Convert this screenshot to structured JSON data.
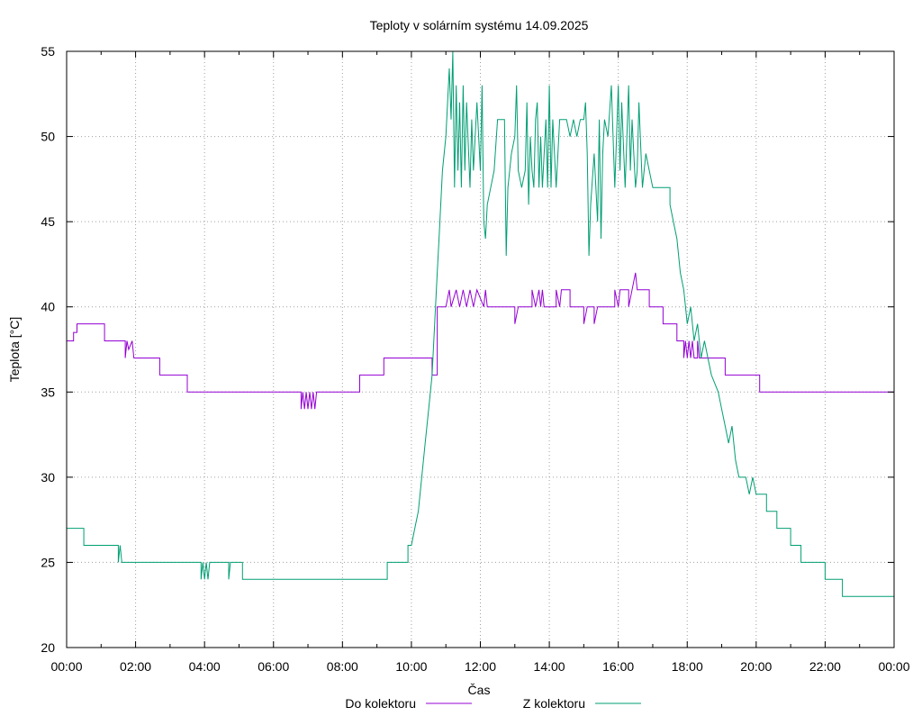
{
  "chart_data": {
    "type": "line",
    "title": "Teploty v solárním systému 14.09.2025",
    "xlabel": "Čas",
    "ylabel": "Teplota [°C]",
    "xlim": [
      0,
      24
    ],
    "ylim": [
      20,
      55
    ],
    "grid": true,
    "legend_position": "bottom",
    "x_ticks": [
      "00:00",
      "02:00",
      "04:00",
      "06:00",
      "08:00",
      "10:00",
      "12:00",
      "14:00",
      "16:00",
      "18:00",
      "20:00",
      "22:00",
      "00:00"
    ],
    "y_ticks": [
      "20",
      "25",
      "30",
      "35",
      "40",
      "45",
      "50",
      "55"
    ],
    "series": [
      {
        "name": "Do kolektoru",
        "color": "#9400d3",
        "points": [
          [
            0,
            38
          ],
          [
            0.2,
            38
          ],
          [
            0.2,
            38.5
          ],
          [
            0.3,
            38.5
          ],
          [
            0.3,
            39
          ],
          [
            1.1,
            39
          ],
          [
            1.1,
            38
          ],
          [
            1.7,
            38
          ],
          [
            1.7,
            37
          ],
          [
            1.75,
            38
          ],
          [
            1.8,
            37.5
          ],
          [
            1.9,
            38
          ],
          [
            1.95,
            37
          ],
          [
            2.05,
            37
          ],
          [
            2.7,
            37
          ],
          [
            2.7,
            36
          ],
          [
            3.5,
            36
          ],
          [
            3.5,
            35
          ],
          [
            6.8,
            35
          ],
          [
            6.8,
            34
          ],
          [
            6.85,
            35
          ],
          [
            6.9,
            34
          ],
          [
            6.95,
            35
          ],
          [
            7.0,
            34
          ],
          [
            7.05,
            35
          ],
          [
            7.1,
            34
          ],
          [
            7.15,
            35
          ],
          [
            7.2,
            34
          ],
          [
            7.25,
            35
          ],
          [
            8.5,
            35
          ],
          [
            8.5,
            36
          ],
          [
            9.2,
            36
          ],
          [
            9.2,
            37
          ],
          [
            10.6,
            37
          ],
          [
            10.6,
            36
          ],
          [
            10.75,
            36
          ],
          [
            10.75,
            40
          ],
          [
            11.0,
            40
          ],
          [
            11.1,
            41
          ],
          [
            11.15,
            40
          ],
          [
            11.3,
            41
          ],
          [
            11.4,
            40
          ],
          [
            11.5,
            41
          ],
          [
            11.6,
            40
          ],
          [
            11.7,
            41
          ],
          [
            11.8,
            40
          ],
          [
            11.9,
            41
          ],
          [
            12.1,
            40
          ],
          [
            12.15,
            41
          ],
          [
            12.2,
            40
          ],
          [
            13.0,
            40
          ],
          [
            13.0,
            39
          ],
          [
            13.1,
            40
          ],
          [
            13.5,
            40
          ],
          [
            13.5,
            41
          ],
          [
            13.6,
            40
          ],
          [
            13.7,
            41
          ],
          [
            13.75,
            40
          ],
          [
            13.8,
            41
          ],
          [
            13.85,
            40
          ],
          [
            14.2,
            40
          ],
          [
            14.2,
            41
          ],
          [
            14.3,
            40
          ],
          [
            14.35,
            41
          ],
          [
            14.6,
            41
          ],
          [
            14.6,
            40
          ],
          [
            15.0,
            40
          ],
          [
            15.0,
            39
          ],
          [
            15.1,
            40
          ],
          [
            15.3,
            40
          ],
          [
            15.3,
            39
          ],
          [
            15.4,
            40
          ],
          [
            15.9,
            40
          ],
          [
            15.9,
            41
          ],
          [
            16.0,
            40
          ],
          [
            16.05,
            41
          ],
          [
            16.3,
            41
          ],
          [
            16.3,
            40
          ],
          [
            16.4,
            41
          ],
          [
            16.5,
            42
          ],
          [
            16.55,
            41
          ],
          [
            16.9,
            41
          ],
          [
            16.9,
            40
          ],
          [
            17.3,
            40
          ],
          [
            17.3,
            39
          ],
          [
            17.7,
            39
          ],
          [
            17.7,
            38
          ],
          [
            17.9,
            38
          ],
          [
            17.9,
            37
          ],
          [
            17.95,
            38
          ],
          [
            18.0,
            37
          ],
          [
            18.05,
            38
          ],
          [
            18.1,
            37
          ],
          [
            18.15,
            38
          ],
          [
            18.2,
            37
          ],
          [
            18.3,
            37
          ],
          [
            18.3,
            38
          ],
          [
            18.35,
            37
          ],
          [
            19.1,
            37
          ],
          [
            19.1,
            36
          ],
          [
            20.1,
            36
          ],
          [
            20.1,
            35
          ],
          [
            24,
            35
          ]
        ]
      },
      {
        "name": "Z kolektoru",
        "color": "#009e73",
        "points": [
          [
            0,
            27
          ],
          [
            0.5,
            27
          ],
          [
            0.5,
            26
          ],
          [
            1.5,
            26
          ],
          [
            1.5,
            25
          ],
          [
            1.55,
            26
          ],
          [
            1.6,
            25
          ],
          [
            3.9,
            25
          ],
          [
            3.9,
            24
          ],
          [
            3.95,
            25
          ],
          [
            4.0,
            24
          ],
          [
            4.05,
            25
          ],
          [
            4.1,
            24
          ],
          [
            4.15,
            25
          ],
          [
            4.7,
            25
          ],
          [
            4.7,
            24
          ],
          [
            4.75,
            25
          ],
          [
            5.1,
            25
          ],
          [
            5.1,
            24
          ],
          [
            9.3,
            24
          ],
          [
            9.3,
            25
          ],
          [
            9.3,
            25
          ],
          [
            9.9,
            25
          ],
          [
            9.9,
            26
          ],
          [
            10.0,
            26
          ],
          [
            10.1,
            27
          ],
          [
            10.2,
            28
          ],
          [
            10.3,
            30
          ],
          [
            10.4,
            32
          ],
          [
            10.5,
            34
          ],
          [
            10.6,
            36
          ],
          [
            10.65,
            38
          ],
          [
            10.7,
            40
          ],
          [
            10.75,
            42
          ],
          [
            10.8,
            44
          ],
          [
            10.85,
            46
          ],
          [
            10.9,
            48
          ],
          [
            11.0,
            50
          ],
          [
            11.05,
            52
          ],
          [
            11.1,
            54
          ],
          [
            11.15,
            51
          ],
          [
            11.2,
            55
          ],
          [
            11.25,
            47
          ],
          [
            11.3,
            53
          ],
          [
            11.35,
            48
          ],
          [
            11.4,
            52
          ],
          [
            11.45,
            47
          ],
          [
            11.5,
            53
          ],
          [
            11.55,
            48
          ],
          [
            11.6,
            52
          ],
          [
            11.7,
            47
          ],
          [
            11.75,
            51
          ],
          [
            11.8,
            48
          ],
          [
            11.9,
            52
          ],
          [
            12.0,
            48
          ],
          [
            12.05,
            53
          ],
          [
            12.1,
            45
          ],
          [
            12.15,
            44
          ],
          [
            12.2,
            46
          ],
          [
            12.3,
            47
          ],
          [
            12.4,
            48
          ],
          [
            12.5,
            51
          ],
          [
            12.7,
            51
          ],
          [
            12.75,
            43
          ],
          [
            12.8,
            47
          ],
          [
            12.9,
            49
          ],
          [
            13.0,
            50
          ],
          [
            13.05,
            53
          ],
          [
            13.1,
            48
          ],
          [
            13.2,
            47
          ],
          [
            13.3,
            48
          ],
          [
            13.35,
            52
          ],
          [
            13.4,
            46
          ],
          [
            13.45,
            50
          ],
          [
            13.5,
            48
          ],
          [
            13.55,
            47
          ],
          [
            13.6,
            51
          ],
          [
            13.65,
            52
          ],
          [
            13.7,
            47
          ],
          [
            13.75,
            50
          ],
          [
            13.8,
            47
          ],
          [
            13.9,
            51
          ],
          [
            13.95,
            47
          ],
          [
            14.0,
            53
          ],
          [
            14.05,
            47
          ],
          [
            14.1,
            51
          ],
          [
            14.2,
            47
          ],
          [
            14.3,
            51
          ],
          [
            14.4,
            51
          ],
          [
            14.5,
            51
          ],
          [
            14.6,
            50
          ],
          [
            14.7,
            51
          ],
          [
            14.8,
            50
          ],
          [
            14.9,
            51
          ],
          [
            15.0,
            51
          ],
          [
            15.05,
            52
          ],
          [
            15.1,
            49
          ],
          [
            15.15,
            43
          ],
          [
            15.2,
            46
          ],
          [
            15.3,
            49
          ],
          [
            15.4,
            45
          ],
          [
            15.45,
            51
          ],
          [
            15.5,
            44
          ],
          [
            15.55,
            49
          ],
          [
            15.6,
            51
          ],
          [
            15.7,
            50
          ],
          [
            15.8,
            53
          ],
          [
            15.9,
            47
          ],
          [
            16.0,
            53
          ],
          [
            16.05,
            48
          ],
          [
            16.1,
            52
          ],
          [
            16.2,
            47
          ],
          [
            16.3,
            53
          ],
          [
            16.35,
            48
          ],
          [
            16.4,
            51
          ],
          [
            16.5,
            47
          ],
          [
            16.55,
            48
          ],
          [
            16.6,
            52
          ],
          [
            16.7,
            47
          ],
          [
            16.8,
            49
          ],
          [
            16.9,
            48
          ],
          [
            17.0,
            47
          ],
          [
            17.5,
            47
          ],
          [
            17.5,
            46
          ],
          [
            17.6,
            45
          ],
          [
            17.7,
            44
          ],
          [
            17.8,
            42
          ],
          [
            17.9,
            41
          ],
          [
            18.0,
            39
          ],
          [
            18.1,
            40
          ],
          [
            18.2,
            38
          ],
          [
            18.3,
            39
          ],
          [
            18.4,
            37
          ],
          [
            18.5,
            38
          ],
          [
            18.6,
            37
          ],
          [
            18.7,
            36
          ],
          [
            18.9,
            35
          ],
          [
            19.0,
            34
          ],
          [
            19.1,
            33
          ],
          [
            19.2,
            32
          ],
          [
            19.3,
            33
          ],
          [
            19.4,
            31
          ],
          [
            19.5,
            30
          ],
          [
            19.7,
            30
          ],
          [
            19.8,
            29
          ],
          [
            19.9,
            30
          ],
          [
            20.0,
            29
          ],
          [
            20.3,
            29
          ],
          [
            20.3,
            28
          ],
          [
            20.6,
            28
          ],
          [
            20.6,
            27
          ],
          [
            21.0,
            27
          ],
          [
            21.0,
            26
          ],
          [
            21.3,
            26
          ],
          [
            21.3,
            25
          ],
          [
            22.0,
            25
          ],
          [
            22.0,
            24
          ],
          [
            22.5,
            24
          ],
          [
            22.5,
            23
          ],
          [
            24,
            23
          ]
        ]
      }
    ]
  }
}
